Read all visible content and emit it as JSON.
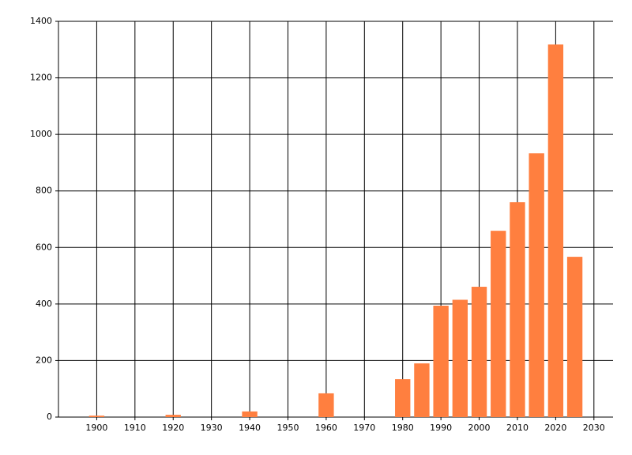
{
  "chart_data": {
    "type": "bar",
    "x": [
      1900,
      1920,
      1940,
      1960,
      1980,
      1985,
      1990,
      1995,
      2000,
      2005,
      2010,
      2015,
      2020,
      2025
    ],
    "values": [
      5,
      8,
      20,
      84,
      134,
      190,
      394,
      415,
      461,
      659,
      760,
      933,
      1318,
      567
    ],
    "color": "#ff7f3f",
    "xlim": [
      1890,
      2035
    ],
    "xticks": [
      1900,
      1910,
      1920,
      1930,
      1940,
      1950,
      1960,
      1970,
      1980,
      1990,
      2000,
      2010,
      2020,
      2030
    ],
    "ylim": [
      0,
      1400
    ],
    "yticks": [
      0,
      200,
      400,
      600,
      800,
      1000,
      1200,
      1400
    ],
    "grid": true
  }
}
